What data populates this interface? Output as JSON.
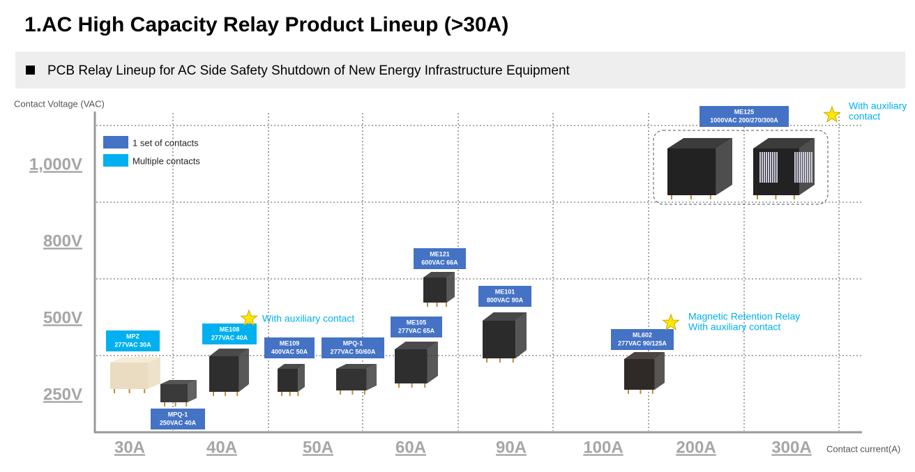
{
  "header": {
    "title": "1.AC High Capacity Relay Product Lineup (>30A)",
    "subtitle": "PCB Relay Lineup for AC Side Safety Shutdown of New Energy Infrastructure Equipment"
  },
  "axes": {
    "y_label": "Contact Voltage (VAC)",
    "x_label": "Contact current(A)",
    "y_levels": [
      "1,000V",
      "800V",
      "500V",
      "250V"
    ],
    "x_levels": [
      "30A",
      "40A",
      "50A",
      "60A",
      "90A",
      "100A",
      "200A",
      "300A"
    ]
  },
  "legend": [
    {
      "label": "1 set of contacts",
      "color": "#4472c4"
    },
    {
      "label": "Multiple contacts",
      "color": "#00b0f0"
    }
  ],
  "products": [
    {
      "name": "MPZ",
      "spec": "277VAC 30A",
      "color": "#00b0f0"
    },
    {
      "name": "MPQ-1",
      "spec": "250VAC 40A",
      "color": "#4472c4"
    },
    {
      "name": "ME108",
      "spec": "277VAC 40A",
      "color": "#00b0f0"
    },
    {
      "name": "ME109",
      "spec": "400VAC 50A",
      "color": "#4472c4"
    },
    {
      "name": "MPQ-1",
      "spec": "277VAC 50/60A",
      "color": "#4472c4"
    },
    {
      "name": "ME105",
      "spec": "277VAC 65A",
      "color": "#4472c4"
    },
    {
      "name": "ME121",
      "spec": "600VAC 66A",
      "color": "#4472c4"
    },
    {
      "name": "ME101",
      "spec": "800VAC 90A",
      "color": "#4472c4"
    },
    {
      "name": "ML602",
      "spec": "277VAC 90/125A",
      "color": "#4472c4"
    },
    {
      "name": "ME125",
      "spec": "1000VAC 200/270/300A",
      "color": "#4472c4"
    }
  ],
  "annotations": [
    {
      "lines": [
        "With auxiliary contact"
      ]
    },
    {
      "lines": [
        "Magnetic Retention Relay",
        "With auxiliary contact"
      ]
    },
    {
      "lines": [
        "With auxiliary",
        "contact"
      ]
    }
  ]
}
